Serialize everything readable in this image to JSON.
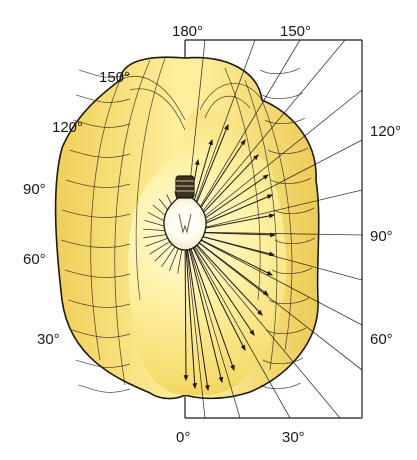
{
  "colors": {
    "solid_light": "#fff6c0",
    "solid_mid": "#f6df72",
    "solid_dark": "#e3b83c",
    "outline": "#1e1a10",
    "background": "#ffffff"
  },
  "labels": {
    "left": {
      "a150": "150°",
      "a120": "120°",
      "a90": "90°",
      "a60": "60°",
      "a30": "30°"
    },
    "top": {
      "a180": "180°",
      "a150": "150°"
    },
    "right": {
      "a120": "120°",
      "a90": "90°",
      "a60": "60°"
    },
    "bottom": {
      "a0": "0°",
      "a30": "30°"
    }
  },
  "icons": {
    "lamp": "light-bulb-icon"
  }
}
